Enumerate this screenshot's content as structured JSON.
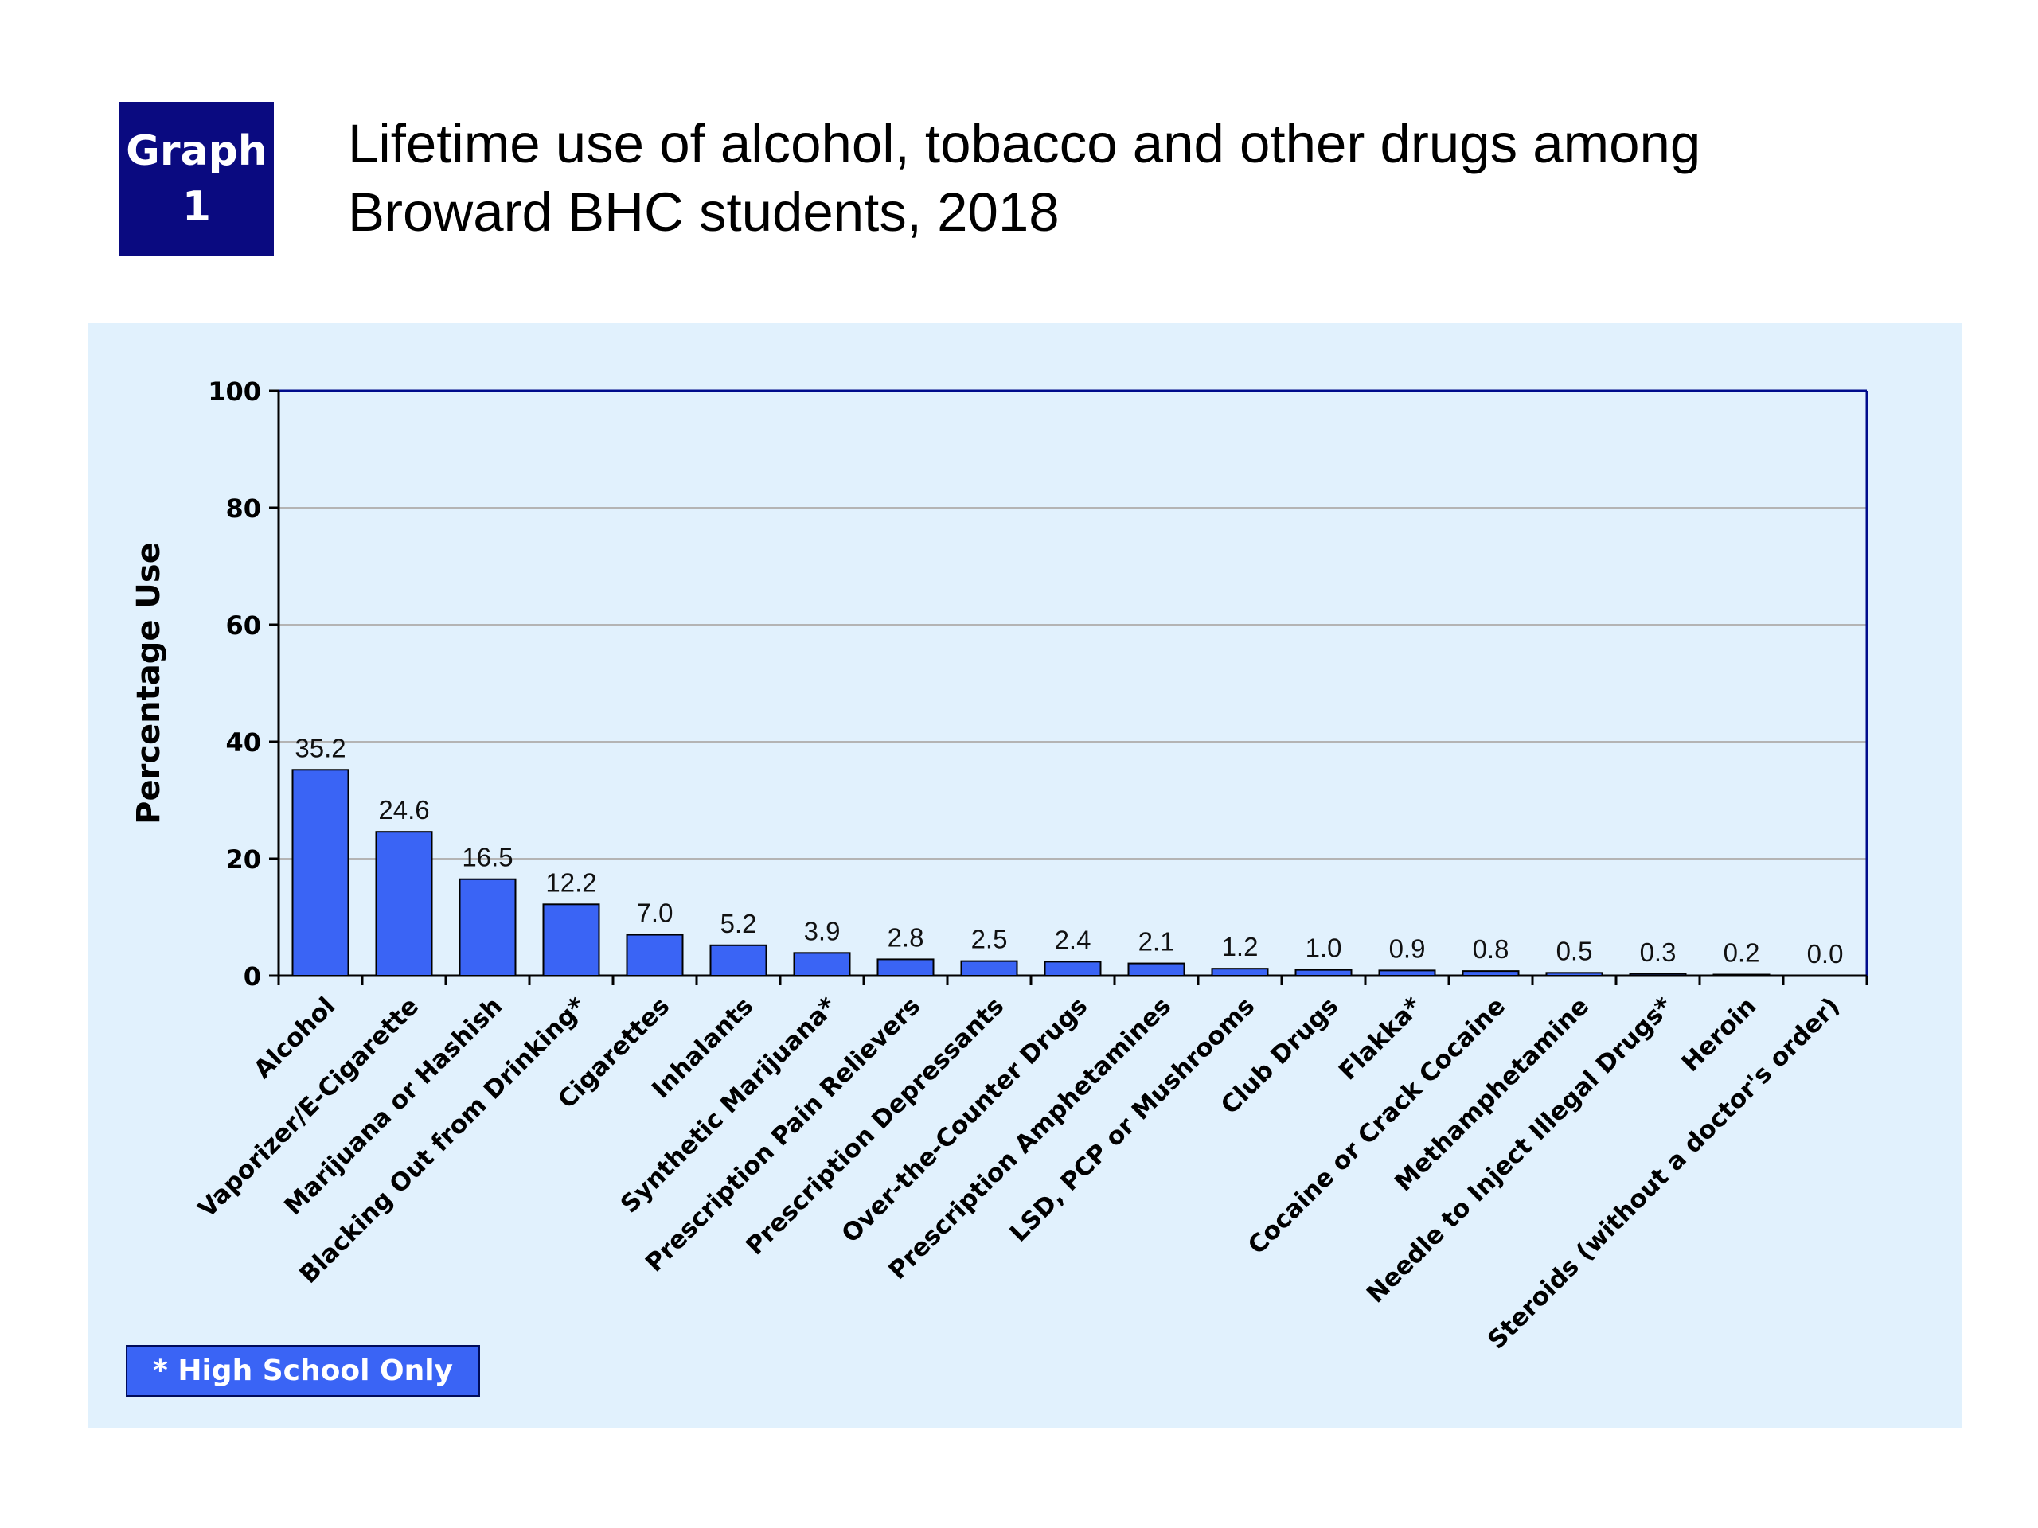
{
  "badge": {
    "line1": "Graph",
    "line2": "1"
  },
  "title": {
    "line1": "Lifetime use of alcohol, tobacco and other drugs among",
    "line2": "Broward BHC students, 2018"
  },
  "note": "* High School Only",
  "colors": {
    "bar": "#3a64f5",
    "bar_border": "#000000",
    "panel": "#e1f1fd",
    "axis_frame": "#000c8c",
    "badge": "#0a0a80",
    "grid": "#b4b4b4"
  },
  "chart_data": {
    "type": "bar",
    "title": "Lifetime use of alcohol, tobacco and other drugs among Broward BHC students, 2018",
    "xlabel": "",
    "ylabel": "Percentage Use",
    "ylim": [
      0,
      100
    ],
    "yticks": [
      0,
      20,
      40,
      60,
      80,
      100
    ],
    "grid": true,
    "categories": [
      "Alcohol",
      "Vaporizer/E-Cigarette",
      "Marijuana or Hashish",
      "Blacking Out from Drinking*",
      "Cigarettes",
      "Inhalants",
      "Synthetic Marijuana*",
      "Prescription Pain Relievers",
      "Prescription Depressants",
      "Over-the-Counter Drugs",
      "Prescription Amphetamines",
      "LSD, PCP or Mushrooms",
      "Club Drugs",
      "Flakka*",
      "Cocaine or Crack Cocaine",
      "Methamphetamine",
      "Needle to Inject Illegal Drugs*",
      "Heroin",
      "Steroids (without a doctor's order)"
    ],
    "values": [
      35.2,
      24.6,
      16.5,
      12.2,
      7.0,
      5.2,
      3.9,
      2.8,
      2.5,
      2.4,
      2.1,
      1.2,
      1.0,
      0.9,
      0.8,
      0.5,
      0.3,
      0.2,
      0.0
    ],
    "data_labels": [
      "35.2",
      "24.6",
      "16.5",
      "12.2",
      "7.0",
      "5.2",
      "3.9",
      "2.8",
      "2.5",
      "2.4",
      "2.1",
      "1.2",
      "1.0",
      "0.9",
      "0.8",
      "0.5",
      "0.3",
      "0.2",
      "0.0"
    ]
  }
}
